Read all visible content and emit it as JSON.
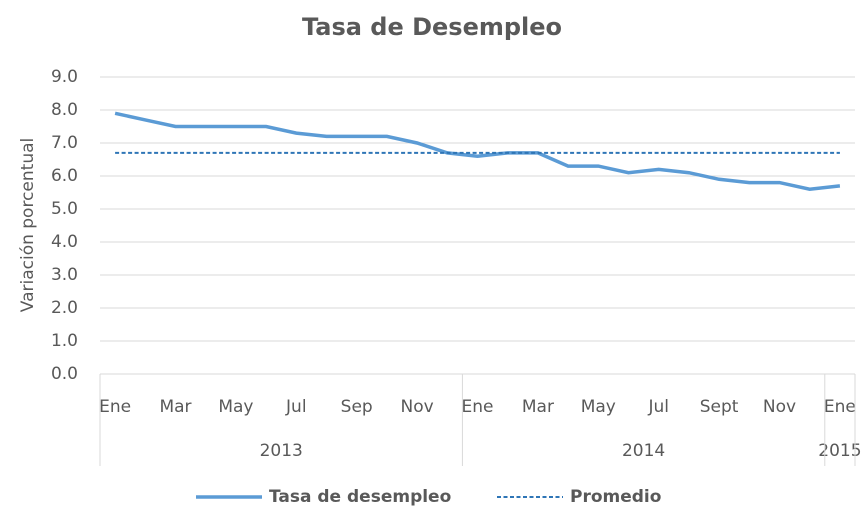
{
  "chart_data": {
    "type": "line",
    "title": "Tasa de Desempleo",
    "y_label": "Variación porcentual",
    "categories": [
      "Ene",
      null,
      "Mar",
      null,
      "May",
      null,
      "Jul",
      null,
      "Sep",
      null,
      "Nov",
      null,
      "Ene",
      null,
      "Mar",
      null,
      "May",
      null,
      "Jul",
      null,
      "Sept",
      null,
      "Nov",
      null,
      "Ene"
    ],
    "x_groups": [
      "2013",
      "2014",
      "2015"
    ],
    "series": [
      {
        "name": "Tasa de desempleo",
        "color": "#5b9bd5",
        "style": "solid",
        "values": [
          7.9,
          7.7,
          7.5,
          7.5,
          7.5,
          7.5,
          7.3,
          7.2,
          7.2,
          7.2,
          7.0,
          6.7,
          6.6,
          6.7,
          6.7,
          6.3,
          6.3,
          6.1,
          6.2,
          6.1,
          5.9,
          5.8,
          5.8,
          5.6,
          5.7
        ]
      },
      {
        "name": "Promedio",
        "color": "#2e75b6",
        "style": "dashed",
        "values": [
          6.7,
          6.7,
          6.7,
          6.7,
          6.7,
          6.7,
          6.7,
          6.7,
          6.7,
          6.7,
          6.7,
          6.7,
          6.7,
          6.7,
          6.7,
          6.7,
          6.7,
          6.7,
          6.7,
          6.7,
          6.7,
          6.7,
          6.7,
          6.7,
          6.7
        ]
      }
    ],
    "ylim": [
      0,
      9
    ],
    "yticks": [
      {
        "value": 0,
        "label": "0.0"
      },
      {
        "value": 1,
        "label": "1.0"
      },
      {
        "value": 2,
        "label": "2.0"
      },
      {
        "value": 3,
        "label": "3.0"
      },
      {
        "value": 4,
        "label": "4.0"
      },
      {
        "value": 5,
        "label": "5.0"
      },
      {
        "value": 6,
        "label": "6.0"
      },
      {
        "value": 7,
        "label": "7.0"
      },
      {
        "value": 8,
        "label": "8.0"
      },
      {
        "value": 9,
        "label": "9.0"
      }
    ],
    "grid": true,
    "legend": "bottom"
  }
}
